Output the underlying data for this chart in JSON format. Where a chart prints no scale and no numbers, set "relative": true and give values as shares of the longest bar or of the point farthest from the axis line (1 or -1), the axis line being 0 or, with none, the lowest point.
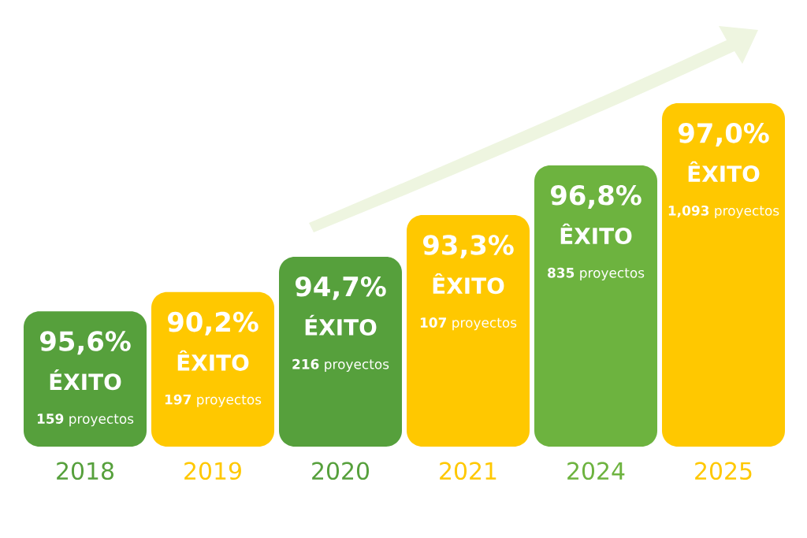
{
  "chart_data": {
    "type": "bar",
    "relative": true,
    "categories": [
      "2018",
      "2019",
      "2020",
      "2021",
      "2024",
      "2025"
    ],
    "values": [
      0.394,
      0.45,
      0.553,
      0.674,
      0.819,
      1
    ],
    "colors": [
      "#56a03c",
      "#ffc800",
      "#56a03c",
      "#ffc800",
      "#6db33f",
      "#ffc800"
    ],
    "annotations": [
      "95,6%",
      "ÉXITO",
      "**159** proyectos",
      "90,2%",
      "ÊXITO",
      "**197** proyectos",
      "94,7%",
      "ÉXITO",
      "**216** proyectos",
      "93,3%",
      "ÊXITO",
      "**107** proyectos",
      "96,8%",
      "ÊXITO",
      "**835** proyectos",
      "97,0%",
      "ÊXITO",
      "**1,093** proyectos"
    ]
  }
}
